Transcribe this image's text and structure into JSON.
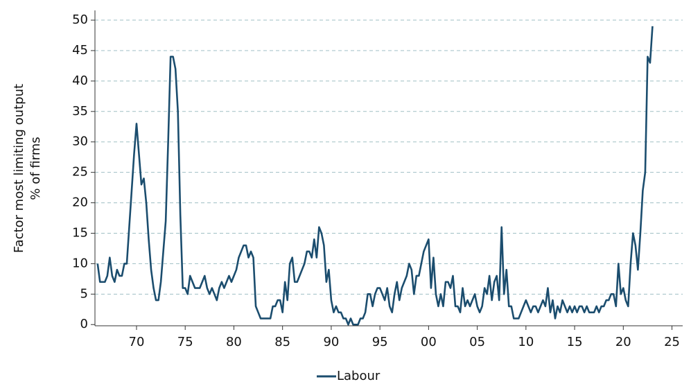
{
  "chart_data": {
    "type": "line",
    "y_label": [
      "Factor most limiting output",
      "% of firms"
    ],
    "x": [
      1966,
      1966.25,
      1966.5,
      1966.75,
      1967,
      1967.25,
      1967.5,
      1967.75,
      1968,
      1968.25,
      1968.5,
      1968.75,
      1969,
      1969.25,
      1969.5,
      1969.75,
      1970,
      1970.25,
      1970.5,
      1970.75,
      1971,
      1971.25,
      1971.5,
      1971.75,
      1972,
      1972.25,
      1972.5,
      1972.75,
      1973,
      1973.25,
      1973.5,
      1973.75,
      1974,
      1974.25,
      1974.5,
      1974.75,
      1975,
      1975.25,
      1975.5,
      1975.75,
      1976,
      1976.25,
      1976.5,
      1976.75,
      1977,
      1977.25,
      1977.5,
      1977.75,
      1978,
      1978.25,
      1978.5,
      1978.75,
      1979,
      1979.25,
      1979.5,
      1979.75,
      1980,
      1980.25,
      1980.5,
      1980.75,
      1981,
      1981.25,
      1981.5,
      1981.75,
      1982,
      1982.25,
      1982.5,
      1982.75,
      1983,
      1983.25,
      1983.5,
      1983.75,
      1984,
      1984.25,
      1984.5,
      1984.75,
      1985,
      1985.25,
      1985.5,
      1985.75,
      1986,
      1986.25,
      1986.5,
      1986.75,
      1987,
      1987.25,
      1987.5,
      1987.75,
      1988,
      1988.25,
      1988.5,
      1988.75,
      1989,
      1989.25,
      1989.5,
      1989.75,
      1990,
      1990.25,
      1990.5,
      1990.75,
      1991,
      1991.25,
      1991.5,
      1991.75,
      1992,
      1992.25,
      1992.5,
      1992.75,
      1993,
      1993.25,
      1993.5,
      1993.75,
      1994,
      1994.25,
      1994.5,
      1994.75,
      1995,
      1995.25,
      1995.5,
      1995.75,
      1996,
      1996.25,
      1996.5,
      1996.75,
      1997,
      1997.25,
      1997.5,
      1997.75,
      1998,
      1998.25,
      1998.5,
      1998.75,
      1999,
      1999.25,
      1999.5,
      1999.75,
      2000,
      2000.25,
      2000.5,
      2000.75,
      2001,
      2001.25,
      2001.5,
      2001.75,
      2002,
      2002.25,
      2002.5,
      2002.75,
      2003,
      2003.25,
      2003.5,
      2003.75,
      2004,
      2004.25,
      2004.5,
      2004.75,
      2005,
      2005.25,
      2005.5,
      2005.75,
      2006,
      2006.25,
      2006.5,
      2006.75,
      2007,
      2007.25,
      2007.5,
      2007.75,
      2008,
      2008.25,
      2008.5,
      2008.75,
      2009,
      2009.25,
      2009.5,
      2009.75,
      2010,
      2010.25,
      2010.5,
      2010.75,
      2011,
      2011.25,
      2011.5,
      2011.75,
      2012,
      2012.25,
      2012.5,
      2012.75,
      2013,
      2013.25,
      2013.5,
      2013.75,
      2014,
      2014.25,
      2014.5,
      2014.75,
      2015,
      2015.25,
      2015.5,
      2015.75,
      2016,
      2016.25,
      2016.5,
      2016.75,
      2017,
      2017.25,
      2017.5,
      2017.75,
      2018,
      2018.25,
      2018.5,
      2018.75,
      2019,
      2019.25,
      2019.5,
      2019.75,
      2020,
      2020.25,
      2020.5,
      2020.75,
      2021,
      2021.25,
      2021.5,
      2021.75,
      2022,
      2022.25,
      2022.5,
      2022.75,
      2023
    ],
    "series": [
      {
        "name": "Labour",
        "color": "#1b4d6e",
        "values": [
          10,
          7,
          7,
          7,
          8,
          11,
          8,
          7,
          9,
          8,
          8,
          10,
          10,
          16,
          22,
          28,
          33,
          28,
          23,
          24,
          20,
          14,
          9,
          6,
          4,
          4,
          7,
          12,
          17,
          30,
          44,
          44,
          42,
          35,
          18,
          6,
          6,
          5,
          8,
          7,
          6,
          6,
          6,
          7,
          8,
          6,
          5,
          6,
          5,
          4,
          6,
          7,
          6,
          7,
          8,
          7,
          8,
          9,
          11,
          12,
          13,
          13,
          11,
          12,
          11,
          3,
          2,
          1,
          1,
          1,
          1,
          1,
          3,
          3,
          4,
          4,
          2,
          7,
          4,
          10,
          11,
          7,
          7,
          8,
          9,
          10,
          12,
          12,
          11,
          14,
          11,
          16,
          15,
          13,
          7,
          9,
          4,
          2,
          3,
          2,
          2,
          1,
          1,
          0,
          1,
          0,
          0,
          0,
          1,
          1,
          2,
          5,
          5,
          3,
          5,
          6,
          6,
          5,
          4,
          6,
          3,
          2,
          5,
          7,
          4,
          6,
          7,
          8,
          10,
          9,
          5,
          8,
          8,
          10,
          12,
          13,
          14,
          6,
          11,
          5,
          3,
          5,
          3,
          7,
          7,
          6,
          8,
          3,
          3,
          2,
          6,
          3,
          4,
          3,
          4,
          5,
          3,
          2,
          3,
          6,
          5,
          8,
          4,
          7,
          8,
          4,
          16,
          5,
          9,
          3,
          3,
          1,
          1,
          1,
          2,
          3,
          4,
          3,
          2,
          3,
          3,
          2,
          3,
          4,
          3,
          6,
          2,
          4,
          1,
          3,
          2,
          4,
          3,
          2,
          3,
          2,
          3,
          2,
          3,
          3,
          2,
          3,
          2,
          2,
          2,
          3,
          2,
          3,
          3,
          4,
          4,
          5,
          5,
          3,
          10,
          5,
          6,
          4,
          3,
          10,
          15,
          13,
          9,
          15,
          22,
          25,
          44,
          43,
          49
        ]
      }
    ],
    "xlim": [
      1965.73,
      2026.1
    ],
    "xticks": [
      {
        "value": 1970,
        "label": "70"
      },
      {
        "value": 1975,
        "label": "75"
      },
      {
        "value": 1980,
        "label": "80"
      },
      {
        "value": 1985,
        "label": "85"
      },
      {
        "value": 1990,
        "label": "90"
      },
      {
        "value": 1995,
        "label": "95"
      },
      {
        "value": 2000,
        "label": "00"
      },
      {
        "value": 2005,
        "label": "05"
      },
      {
        "value": 2010,
        "label": "10"
      },
      {
        "value": 2015,
        "label": "15"
      },
      {
        "value": 2020,
        "label": "20"
      },
      {
        "value": 2025,
        "label": "25"
      }
    ],
    "ylim": [
      -0.2,
      51.6
    ],
    "yticks": [
      0,
      5,
      10,
      15,
      20,
      25,
      30,
      35,
      40,
      45,
      50
    ],
    "grid": true
  }
}
